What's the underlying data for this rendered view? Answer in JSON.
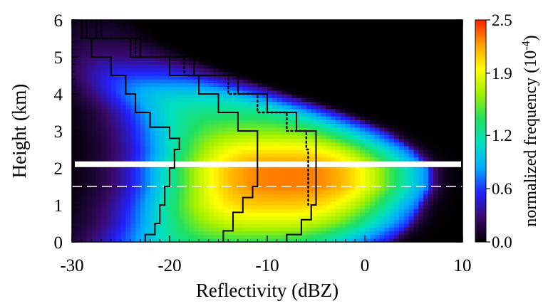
{
  "chart_data": {
    "type": "heatmap",
    "title": "",
    "xlabel": "Reflectivity (dBZ)",
    "ylabel": "Height (km)",
    "xlim": [
      -30,
      10
    ],
    "ylim": [
      0,
      6
    ],
    "x_ticks": [
      "-30",
      "-20",
      "-10",
      "0",
      "10"
    ],
    "x_tick_values": [
      -30,
      -20,
      -10,
      0,
      10
    ],
    "y_ticks": [
      "0",
      "1",
      "2",
      "3",
      "4",
      "5",
      "6"
    ],
    "y_tick_values": [
      0,
      1,
      2,
      3,
      4,
      5,
      6
    ],
    "colorbar": {
      "label": "normalized frequency (10",
      "label_exp": "-4",
      "label_close": ")",
      "ticks": [
        "0.0",
        "0.6",
        "1.2",
        "1.9",
        "2.5"
      ],
      "tick_values": [
        0.0,
        0.6,
        1.2,
        1.9,
        2.5
      ],
      "range": [
        0.0,
        2.5
      ],
      "colormap": [
        "#000000",
        "#3a0a6e",
        "#2222ff",
        "#00aaff",
        "#00e0c0",
        "#20e060",
        "#a0f000",
        "#ffff00",
        "#ffa000",
        "#ff2000"
      ]
    },
    "frequency_envelope": {
      "height_km": [
        0.0,
        0.5,
        1.0,
        1.5,
        2.0,
        2.5,
        3.0,
        3.5,
        4.0,
        4.5,
        5.0,
        5.5,
        6.0
      ],
      "center_dbz": [
        -12,
        -10,
        -9,
        -8,
        -8,
        -9,
        -11,
        -14,
        -18,
        -22,
        -25,
        -27,
        -28
      ],
      "spread_dbz": [
        9,
        9,
        9,
        9,
        9,
        8.5,
        8,
        7,
        6,
        5,
        4,
        3,
        2.5
      ],
      "peak_frequency": [
        1.4,
        1.8,
        2.1,
        2.3,
        2.3,
        2.0,
        1.6,
        1.3,
        1.0,
        0.6,
        0.3,
        0.15,
        0.08
      ]
    },
    "series": [
      {
        "values": [
          {
            "x": -22.5,
            "y": 0.0
          },
          {
            "x": -21.5,
            "y": 0.2
          },
          {
            "x": -21.0,
            "y": 0.5
          },
          {
            "x": -20.5,
            "y": 1.0
          },
          {
            "x": -20.0,
            "y": 1.5
          },
          {
            "x": -19.5,
            "y": 2.0
          },
          {
            "x": -19.0,
            "y": 2.5
          },
          {
            "x": -20.0,
            "y": 2.8
          },
          {
            "x": -22.0,
            "y": 3.1
          },
          {
            "x": -23.5,
            "y": 3.5
          },
          {
            "x": -24.5,
            "y": 4.0
          },
          {
            "x": -26.0,
            "y": 4.5
          },
          {
            "x": -28.0,
            "y": 5.0
          },
          {
            "x": -29.0,
            "y": 5.5
          },
          {
            "x": -29.0,
            "y": 6.0
          }
        ]
      },
      {
        "values": [
          {
            "x": -14.5,
            "y": 0.0
          },
          {
            "x": -13.5,
            "y": 0.3
          },
          {
            "x": -12.5,
            "y": 0.8
          },
          {
            "x": -11.5,
            "y": 1.2
          },
          {
            "x": -11.0,
            "y": 1.5
          },
          {
            "x": -11.0,
            "y": 2.0
          },
          {
            "x": -11.0,
            "y": 2.5
          },
          {
            "x": -13.0,
            "y": 3.0
          },
          {
            "x": -15.0,
            "y": 3.5
          },
          {
            "x": -17.0,
            "y": 4.0
          },
          {
            "x": -20.0,
            "y": 4.5
          },
          {
            "x": -24.0,
            "y": 5.0
          },
          {
            "x": -28.5,
            "y": 5.5
          },
          {
            "x": -29.0,
            "y": 6.0
          }
        ]
      },
      {
        "values": [
          {
            "x": -8.0,
            "y": 0.0
          },
          {
            "x": -6.5,
            "y": 0.2
          },
          {
            "x": -5.5,
            "y": 0.6
          },
          {
            "x": -5.0,
            "y": 1.0
          },
          {
            "x": -5.0,
            "y": 1.5
          },
          {
            "x": -5.0,
            "y": 2.0
          },
          {
            "x": -5.0,
            "y": 2.5
          },
          {
            "x": -7.0,
            "y": 3.0
          },
          {
            "x": -10.0,
            "y": 3.5
          },
          {
            "x": -13.0,
            "y": 4.0
          },
          {
            "x": -17.5,
            "y": 4.5
          },
          {
            "x": -23.0,
            "y": 5.0
          },
          {
            "x": -27.5,
            "y": 5.5
          },
          {
            "x": -28.0,
            "y": 6.0
          }
        ]
      },
      {
        "style": "dotted",
        "values": [
          {
            "x": -5.8,
            "y": 1.0
          },
          {
            "x": -5.8,
            "y": 1.5
          },
          {
            "x": -5.8,
            "y": 2.0
          },
          {
            "x": -6.0,
            "y": 2.5
          },
          {
            "x": -8.0,
            "y": 3.0
          },
          {
            "x": -11.0,
            "y": 3.5
          },
          {
            "x": -14.0,
            "y": 4.0
          },
          {
            "x": -18.5,
            "y": 4.5
          },
          {
            "x": -23.5,
            "y": 5.0
          },
          {
            "x": -27.0,
            "y": 5.5
          },
          {
            "x": -27.5,
            "y": 6.0
          }
        ]
      }
    ],
    "annotations": [
      {
        "type": "horizontal_band",
        "y": 2.1,
        "color": "#ffffff",
        "style": "solid"
      },
      {
        "type": "horizontal_line",
        "y": 1.5,
        "color": "#ffffff",
        "style": "dashed"
      }
    ]
  }
}
